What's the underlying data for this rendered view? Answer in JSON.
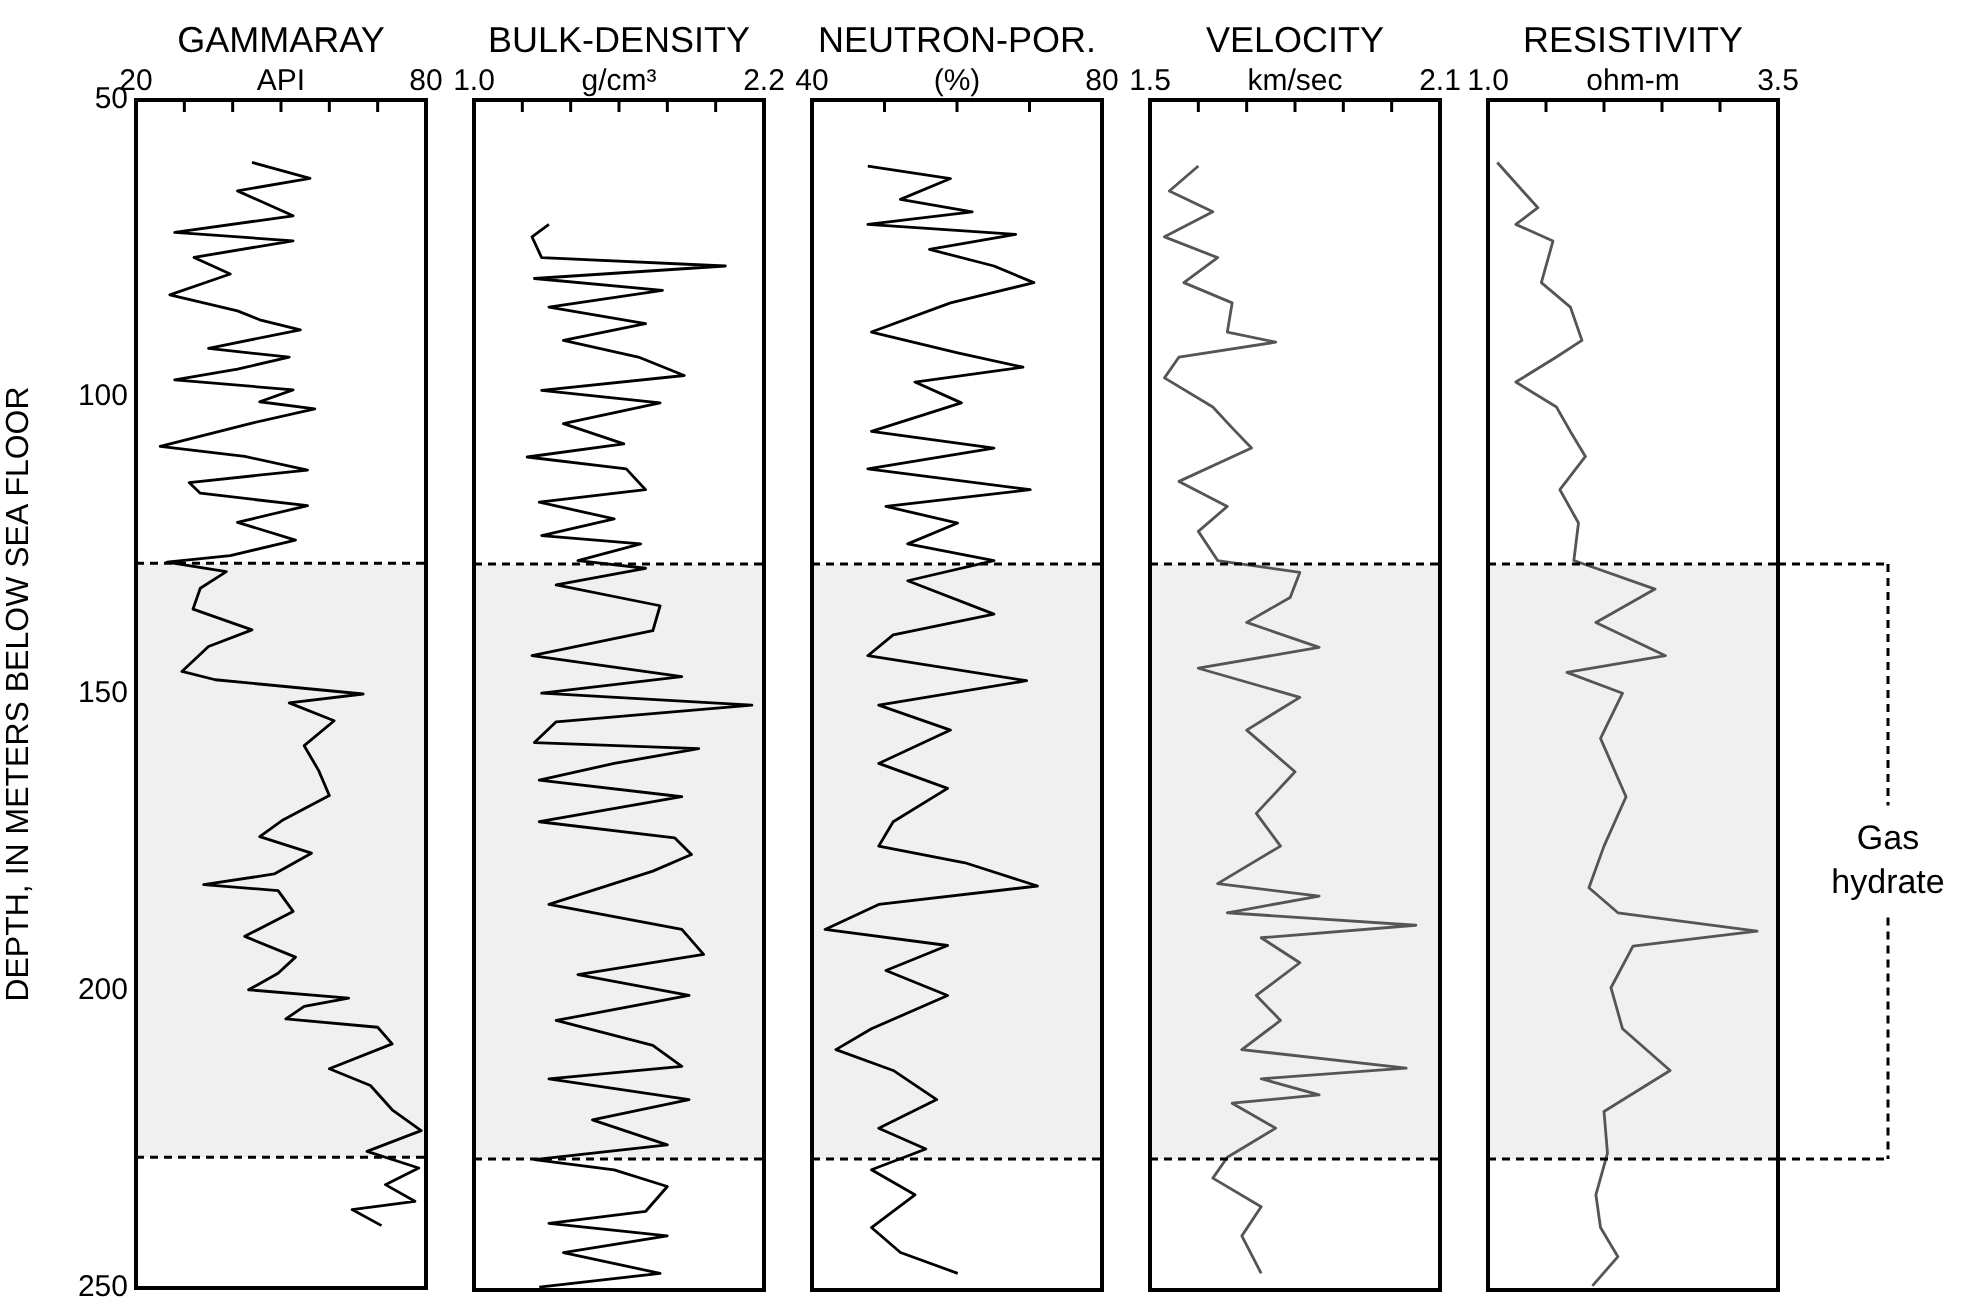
{
  "chart_data": [
    {
      "type": "line",
      "title": "GAMMARAY",
      "xlabel": "API",
      "ylabel": "DEPTH, IN METERS BELOW SEA FLOOR",
      "marker": "none",
      "xlim": [
        20,
        80
      ],
      "xticks": [
        20,
        {
          "value": 30,
          "label": null
        },
        {
          "value": 40,
          "label": null
        },
        {
          "value": 50,
          "label": null
        },
        {
          "value": 60,
          "label": null
        },
        {
          "value": 70,
          "label": null
        },
        80
      ],
      "ylim": [
        250,
        50
      ],
      "yticks": [
        50,
        100,
        150,
        200,
        250
      ],
      "bands": [
        {
          "axis": "y",
          "from": 128,
          "to": 228,
          "color": "#f0f0f0"
        }
      ],
      "ref_lines": [
        {
          "axis": "y",
          "value": 128,
          "color": "#000000",
          "line_style": "dashed"
        },
        {
          "axis": "y",
          "value": 228,
          "color": "#000000",
          "line_style": "dashed"
        }
      ],
      "series": [
        {
          "color": "#000000",
          "x": [
            44,
            56,
            41,
            52.5,
            28,
            52.5,
            32,
            39.5,
            27,
            41,
            45.6,
            54,
            35,
            51.7,
            41,
            28,
            52.5,
            45.6,
            57,
            44,
            25,
            42.5,
            55.5,
            31,
            33.3,
            55.5,
            41,
            53,
            39.5,
            26.4,
            38.7,
            33.3,
            31.8,
            44,
            35,
            29.5,
            36.4,
            67,
            51.7,
            61,
            54.8,
            57.8,
            60,
            50.2,
            45.6,
            56.3,
            48.6,
            34,
            49.4,
            52.5,
            42.5,
            53,
            49.4,
            43.3,
            64,
            54.8,
            51,
            70,
            73,
            60,
            68.5,
            73,
            79,
            67.8,
            78.5,
            71.6,
            77.7,
            64.7,
            70.8
          ],
          "values": [
            60.5,
            63.2,
            65.3,
            69.5,
            72.3,
            73.7,
            76.5,
            79.3,
            82.8,
            85.5,
            87,
            88.7,
            91.8,
            93.3,
            95.3,
            97.1,
            98.8,
            100.8,
            102,
            104.4,
            108.3,
            110,
            112.3,
            114.4,
            116.2,
            118.3,
            121.1,
            124.1,
            126.7,
            127.8,
            129.4,
            132.2,
            135.7,
            139.2,
            142,
            146.2,
            147.6,
            150,
            151.5,
            154.5,
            158.7,
            162.9,
            167.1,
            171.3,
            174,
            176.8,
            180.3,
            182.1,
            183.1,
            186.6,
            190.8,
            194.3,
            197,
            199.8,
            201.2,
            202.6,
            204.7,
            206.1,
            208.9,
            213.1,
            215.9,
            220,
            223.5,
            227,
            229.8,
            232.6,
            235.4,
            236.8,
            239.5
          ]
        }
      ]
    },
    {
      "type": "line",
      "title": "BULK-DENSITY",
      "xlabel": "g/cm³",
      "marker": "none",
      "tick_labels": "x",
      "xlim": [
        1.0,
        2.2
      ],
      "xticks": [
        {
          "value": 1.0,
          "label": "1.0"
        },
        {
          "value": 1.2,
          "label": null
        },
        {
          "value": 1.4,
          "label": null
        },
        {
          "value": 1.6,
          "label": null
        },
        {
          "value": 1.8,
          "label": null
        },
        {
          "value": 2.0,
          "label": null
        },
        2.2
      ],
      "ylim": [
        250,
        50
      ],
      "yticks": [
        50,
        100,
        150,
        200,
        250
      ],
      "bands": [
        {
          "axis": "y",
          "from": 128,
          "to": 228,
          "color": "#f0f0f0"
        }
      ],
      "ref_lines": [
        {
          "axis": "y",
          "value": 128,
          "color": "#000000",
          "line_style": "dashed"
        },
        {
          "axis": "y",
          "value": 228,
          "color": "#000000",
          "line_style": "dashed"
        }
      ],
      "series": [
        {
          "color": "#000000",
          "x": [
            1.31,
            1.24,
            1.28,
            2.04,
            1.25,
            1.78,
            1.31,
            1.71,
            1.37,
            1.68,
            1.87,
            1.28,
            1.77,
            1.37,
            1.62,
            1.22,
            1.63,
            1.71,
            1.27,
            1.58,
            1.28,
            1.69,
            1.43,
            1.71,
            1.34,
            1.77,
            1.74,
            1.24,
            1.86,
            1.28,
            2.15,
            1.34,
            1.25,
            1.93,
            1.58,
            1.27,
            1.86,
            1.27,
            1.83,
            1.9,
            1.74,
            1.31,
            1.86,
            1.95,
            1.43,
            1.89,
            1.34,
            1.74,
            1.86,
            1.31,
            1.89,
            1.49,
            1.8,
            1.25,
            1.58,
            1.8,
            1.71,
            1.31,
            1.8,
            1.37,
            1.77,
            1.27
          ],
          "values": [
            70.9,
            73,
            76.5,
            77.9,
            80,
            82,
            84.8,
            87.6,
            90.4,
            93.2,
            96.3,
            98.8,
            100.9,
            104.4,
            107.8,
            110,
            112,
            115.5,
            117.6,
            120.4,
            123.2,
            124.6,
            127.4,
            128.7,
            131.5,
            135,
            139.2,
            143.4,
            146.9,
            149.7,
            151.7,
            154.5,
            158,
            159,
            161.5,
            164.3,
            167.1,
            171.3,
            174,
            176.8,
            179.6,
            185.2,
            189.4,
            193.6,
            197,
            200.5,
            204.7,
            208.9,
            212.4,
            214.5,
            218,
            221.4,
            225.6,
            228.1,
            229.8,
            232.6,
            236.8,
            238.8,
            240.9,
            243.7,
            247.2,
            249.5
          ]
        }
      ]
    },
    {
      "type": "line",
      "title": "NEUTRON-POR.",
      "xlabel": "(%)",
      "marker": "none",
      "tick_labels": "x",
      "xlim": [
        40,
        80
      ],
      "xticks": [
        40,
        {
          "value": 50,
          "label": null
        },
        {
          "value": 60,
          "label": null
        },
        {
          "value": 70,
          "label": null
        },
        80
      ],
      "ylim": [
        250,
        50
      ],
      "yticks": [
        50,
        100,
        150,
        200,
        250
      ],
      "bands": [
        {
          "axis": "y",
          "from": 128,
          "to": 228,
          "color": "#f0f0f0"
        }
      ],
      "ref_lines": [
        {
          "axis": "y",
          "value": 128,
          "color": "#000000",
          "line_style": "dashed"
        },
        {
          "axis": "y",
          "value": 228,
          "color": "#000000",
          "line_style": "dashed"
        }
      ],
      "series": [
        {
          "color": "#000000",
          "x": [
            47.7,
            59.1,
            52.2,
            62.1,
            47.7,
            68.1,
            56.2,
            65.1,
            70.6,
            59.1,
            48.2,
            60.1,
            69.1,
            54.2,
            60.6,
            48.2,
            65.1,
            47.7,
            70.1,
            50.2,
            60.1,
            53.2,
            65.1,
            53.2,
            65.1,
            51.2,
            47.7,
            69.6,
            49.2,
            59.1,
            49.2,
            58.7,
            51.2,
            49.2,
            61.1,
            71.1,
            49.2,
            41.8,
            58.7,
            50.2,
            58.7,
            48.2,
            43.3,
            51.2,
            57.2,
            49.2,
            55.7,
            48.2,
            54.2,
            48.2,
            52.2,
            60.1
          ],
          "values": [
            61.1,
            63.2,
            66.7,
            68.8,
            70.9,
            72.6,
            75.1,
            77.9,
            80.7,
            84.1,
            89,
            92.5,
            94.9,
            97.4,
            100.9,
            105.7,
            108.5,
            112,
            115.5,
            118.3,
            121.1,
            124.6,
            127.4,
            130.8,
            136.4,
            139.9,
            143.4,
            147.6,
            151.7,
            155.9,
            161.5,
            165.7,
            171.3,
            175.4,
            178.2,
            182.1,
            185.2,
            189.4,
            192.1,
            196.3,
            200.5,
            206.1,
            209.6,
            213.1,
            218,
            222.8,
            226.3,
            229.8,
            234,
            239.5,
            243.7,
            247.2
          ]
        }
      ]
    },
    {
      "type": "line",
      "title": "VELOCITY",
      "xlabel": "km/sec",
      "marker": "none",
      "tick_labels": "x",
      "xlim": [
        1.5,
        2.1
      ],
      "xticks": [
        1.5,
        {
          "value": 1.6,
          "label": null
        },
        {
          "value": 1.7,
          "label": null
        },
        {
          "value": 1.8,
          "label": null
        },
        {
          "value": 1.9,
          "label": null
        },
        {
          "value": 2.0,
          "label": null
        },
        2.1
      ],
      "ylim": [
        250,
        50
      ],
      "yticks": [
        50,
        100,
        150,
        200,
        250
      ],
      "bands": [
        {
          "axis": "y",
          "from": 128,
          "to": 228,
          "color": "#f0f0f0"
        }
      ],
      "ref_lines": [
        {
          "axis": "y",
          "value": 128,
          "color": "#000000",
          "line_style": "dashed"
        },
        {
          "axis": "y",
          "value": 228,
          "color": "#000000",
          "line_style": "dashed"
        }
      ],
      "series": [
        {
          "color": "#555555",
          "x": [
            1.6,
            1.54,
            1.63,
            1.53,
            1.64,
            1.57,
            1.67,
            1.66,
            1.76,
            1.56,
            1.53,
            1.63,
            1.67,
            1.71,
            1.56,
            1.66,
            1.6,
            1.64,
            1.81,
            1.79,
            1.7,
            1.85,
            1.6,
            1.81,
            1.7,
            1.8,
            1.72,
            1.77,
            1.64,
            1.85,
            1.66,
            2.05,
            1.73,
            1.81,
            1.72,
            1.77,
            1.69,
            2.03,
            1.73,
            1.85,
            1.67,
            1.76,
            1.66,
            1.63,
            1.73,
            1.69,
            1.73
          ],
          "values": [
            61.1,
            65.3,
            68.8,
            73,
            76.5,
            80.7,
            84.1,
            89,
            90.7,
            93.2,
            96.7,
            101.6,
            105.1,
            108.5,
            114.1,
            118.3,
            122.5,
            127.4,
            129.4,
            133.6,
            137.8,
            142,
            145.5,
            150.4,
            155.9,
            162.9,
            169.9,
            175.4,
            181.7,
            183.8,
            186.6,
            188.7,
            190.8,
            195,
            200.5,
            204.7,
            209.6,
            212.7,
            214.5,
            217.2,
            218.6,
            222.8,
            227.7,
            231.2,
            236,
            240.9,
            247.2
          ]
        }
      ]
    },
    {
      "type": "line",
      "title": "RESISTIVITY",
      "xlabel": "ohm-m",
      "marker": "none",
      "tick_labels": "x",
      "xlim": [
        1.0,
        3.5
      ],
      "xticks": [
        {
          "value": 1.0,
          "label": "1.0"
        },
        {
          "value": 1.5,
          "label": null
        },
        {
          "value": 2.0,
          "label": null
        },
        {
          "value": 2.5,
          "label": null
        },
        {
          "value": 3.0,
          "label": null
        },
        3.5
      ],
      "ylim": [
        250,
        50
      ],
      "yticks": [
        50,
        100,
        150,
        200,
        250
      ],
      "bands": [
        {
          "axis": "y",
          "from": 128,
          "to": 228,
          "color": "#f0f0f0",
          "label": "Gas hydrate"
        }
      ],
      "ref_lines": [
        {
          "axis": "y",
          "value": 128,
          "color": "#000000",
          "line_style": "dashed"
        },
        {
          "axis": "y",
          "value": 228,
          "color": "#000000",
          "line_style": "dashed"
        }
      ],
      "series": [
        {
          "color": "#555555",
          "x": [
            1.08,
            1.24,
            1.43,
            1.24,
            1.56,
            1.46,
            1.71,
            1.81,
            1.59,
            1.24,
            1.59,
            1.71,
            1.84,
            1.62,
            1.78,
            1.74,
            2.44,
            1.93,
            2.53,
            1.68,
            2.16,
            1.97,
            2.19,
            2.0,
            1.87,
            2.12,
            3.32,
            2.25,
            2.06,
            2.16,
            2.57,
            2.0,
            2.03,
            1.93,
            1.97,
            2.12,
            1.9
          ],
          "values": [
            60.5,
            64,
            68.1,
            70.9,
            73.7,
            80.7,
            84.8,
            90.4,
            93.2,
            97.4,
            101.6,
            105.7,
            109.9,
            115.5,
            121.1,
            127.4,
            132.2,
            137.8,
            143.4,
            146.2,
            149.7,
            157.3,
            167.1,
            175.4,
            182.4,
            186.6,
            189.7,
            192.2,
            199.2,
            206.1,
            213.1,
            220,
            227,
            234,
            239.5,
            244.4,
            249.3
          ]
        }
      ]
    }
  ]
}
